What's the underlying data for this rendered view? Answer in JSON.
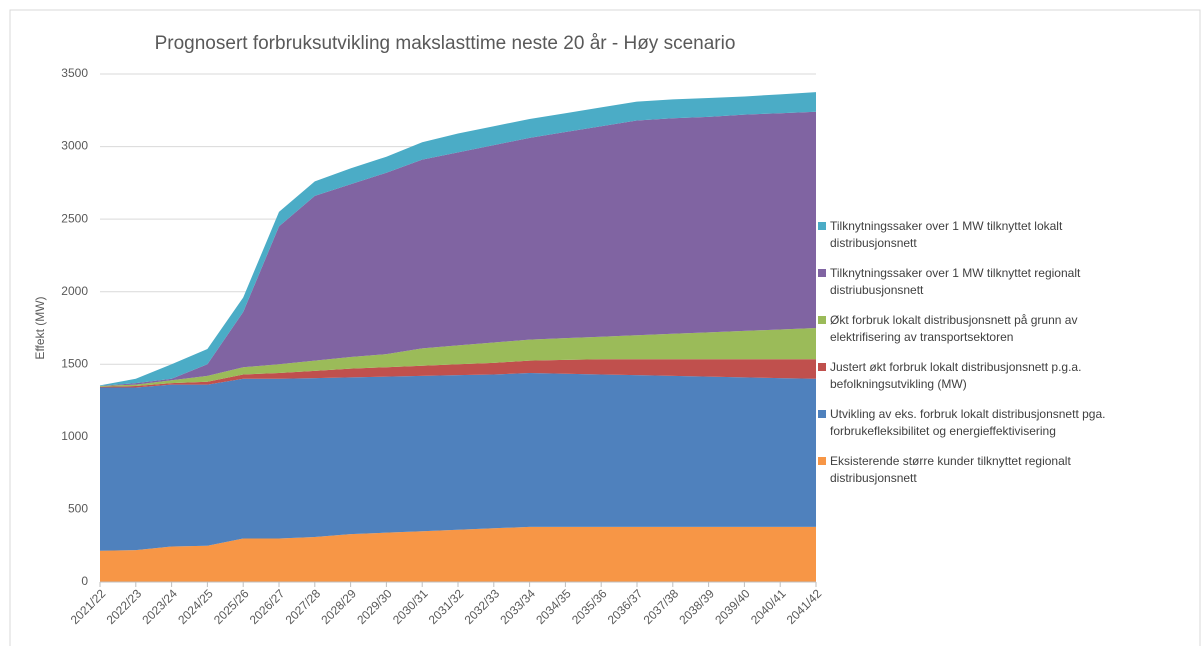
{
  "chart_data": {
    "type": "stacked_area",
    "title": "Prognosert forbruksutvikling makslasttime neste 20 år - Høy scenario",
    "y_label": "Effekt (MW)",
    "categories": [
      "2021/22",
      "2022/23",
      "2023/24",
      "2024/25",
      "2025/26",
      "2026/27",
      "2027/28",
      "2028/29",
      "2029/30",
      "2030/31",
      "2031/32",
      "2032/33",
      "2033/34",
      "2034/35",
      "2035/36",
      "2036/37",
      "2037/38",
      "2038/39",
      "2039/40",
      "2040/41",
      "2041/42"
    ],
    "series": [
      {
        "name": "Eksisterende større kunder tilknyttet regionalt distribusjonsnett",
        "color": "#f79646",
        "values": [
          215,
          220,
          245,
          250,
          300,
          300,
          310,
          330,
          340,
          350,
          360,
          370,
          380,
          380,
          380,
          380,
          380,
          380,
          380,
          380,
          380
        ]
      },
      {
        "name": "Utvikling av eks. forbruk lokalt distribusjonsnett pga. forbrukefleksibilitet og energieffektivisering",
        "color": "#4f81bd",
        "values": [
          1125,
          1120,
          1115,
          1110,
          1100,
          1100,
          1095,
          1080,
          1075,
          1070,
          1065,
          1060,
          1060,
          1055,
          1050,
          1045,
          1040,
          1035,
          1030,
          1025,
          1020
        ]
      },
      {
        "name": "Justert økt forbruk lokalt distribusjonsnett p.g.a. befolkningsutvikling (MW)",
        "color": "#c0504d",
        "values": [
          5,
          10,
          10,
          20,
          30,
          40,
          50,
          60,
          65,
          70,
          75,
          80,
          85,
          95,
          105,
          110,
          115,
          120,
          125,
          130,
          135
        ]
      },
      {
        "name": "Økt forbruk lokalt distribusjonsnett på grunn av elektrifisering av transportsektoren",
        "color": "#9bbb59",
        "values": [
          5,
          10,
          20,
          40,
          50,
          60,
          70,
          80,
          90,
          120,
          130,
          140,
          145,
          150,
          155,
          165,
          175,
          185,
          195,
          205,
          215
        ]
      },
      {
        "name": "Tilknytningssaker over 1 MW tilknyttet regionalt distriubusjonsnett",
        "color": "#8064a2",
        "values": [
          0,
          10,
          10,
          80,
          380,
          950,
          1135,
          1190,
          1250,
          1300,
          1330,
          1360,
          1390,
          1420,
          1450,
          1480,
          1485,
          1485,
          1490,
          1490,
          1490
        ]
      },
      {
        "name": "Tilknytningssaker over 1 MW tilknyttet lokalt distribusjonsnett",
        "color": "#4bacc6",
        "values": [
          5,
          30,
          100,
          105,
          100,
          100,
          100,
          110,
          110,
          120,
          130,
          130,
          130,
          130,
          130,
          130,
          130,
          130,
          125,
          130,
          135
        ]
      }
    ],
    "ylim": [
      0,
      3500
    ],
    "yticks": [
      0,
      500,
      1000,
      1500,
      2000,
      2500,
      3000,
      3500
    ],
    "grid": true,
    "legend": "right"
  }
}
